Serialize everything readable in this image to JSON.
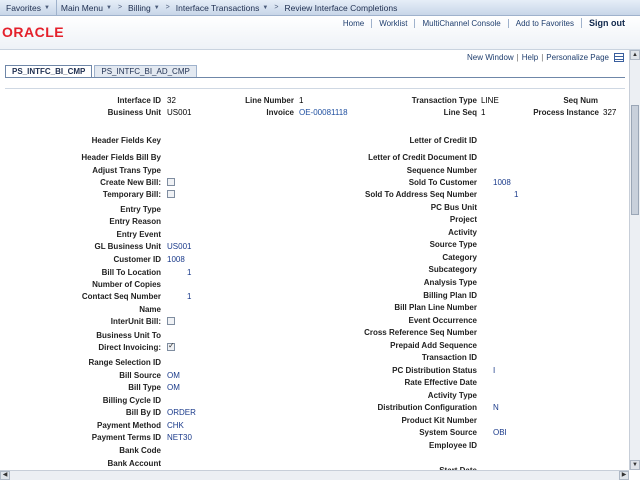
{
  "topnav": {
    "favorites": "Favorites",
    "main_menu": "Main Menu",
    "crumbs": [
      "Billing",
      "Interface Transactions",
      "Review Interface Completions"
    ]
  },
  "header": {
    "logo": "ORACLE",
    "links": [
      "Home",
      "Worklist",
      "MultiChannel Console",
      "Add to Favorites",
      "Sign out"
    ]
  },
  "pagelinks": [
    "New Window",
    "Help",
    "Personalize Page"
  ],
  "tabs": [
    "PS_INTFC_BI_CMP",
    "PS_INTFC_BI_AD_CMP"
  ],
  "summary": {
    "interface_id_label": "Interface ID",
    "interface_id": "32",
    "line_number_label": "Line Number",
    "line_number": "1",
    "transaction_type_label": "Transaction Type",
    "transaction_type": "LINE",
    "seq_num_label": "Seq Num",
    "business_unit_label": "Business Unit",
    "business_unit": "US001",
    "invoice_label": "Invoice",
    "invoice": "OE-00081118",
    "line_seq_label": "Line Seq",
    "line_seq": "1",
    "process_instance_label": "Process Instance",
    "process_instance": "327"
  },
  "left_fields": [
    {
      "label": "Header Fields Key",
      "value": ""
    },
    {
      "label": "Header Fields Bill By",
      "value": ""
    },
    {
      "label": "Adjust Trans Type",
      "value": ""
    },
    {
      "label": "Create New Bill:",
      "value": "",
      "checkbox": false
    },
    {
      "label": "Temporary Bill:",
      "value": "",
      "checkbox": false
    },
    {
      "label": "Entry Type",
      "value": ""
    },
    {
      "label": "Entry Reason",
      "value": ""
    },
    {
      "label": "Entry Event",
      "value": ""
    },
    {
      "label": "GL Business Unit",
      "value": "US001"
    },
    {
      "label": "Customer ID",
      "value": "1008"
    },
    {
      "label": "Bill To Location",
      "value": "1"
    },
    {
      "label": "Number of Copies",
      "value": ""
    },
    {
      "label": "Contact Seq Number",
      "value": "1"
    },
    {
      "label": "Name",
      "value": ""
    },
    {
      "label": "InterUnit Bill:",
      "value": "",
      "checkbox": false
    },
    {
      "label": "Business Unit To",
      "value": ""
    },
    {
      "label": "Direct Invoicing:",
      "value": "",
      "checkbox": true
    },
    {
      "label": "Range Selection ID",
      "value": ""
    },
    {
      "label": "Bill Source",
      "value": "OM"
    },
    {
      "label": "Bill Type",
      "value": "OM"
    },
    {
      "label": "Billing Cycle ID",
      "value": ""
    },
    {
      "label": "Bill By ID",
      "value": "ORDER"
    },
    {
      "label": "Payment Method",
      "value": "CHK"
    },
    {
      "label": "Payment Terms ID",
      "value": "NET30"
    },
    {
      "label": "Bank Code",
      "value": ""
    },
    {
      "label": "Bank Account",
      "value": ""
    }
  ],
  "right_fields": [
    {
      "label": "Letter of Credit ID",
      "value": ""
    },
    {
      "label": "Letter of Credit Document ID",
      "value": ""
    },
    {
      "label": "Sequence Number",
      "value": ""
    },
    {
      "label": "Sold To Customer",
      "value": "1008"
    },
    {
      "label": "Sold To Address Seq Number",
      "value": "1"
    },
    {
      "label": "PC Bus Unit",
      "value": ""
    },
    {
      "label": "Project",
      "value": ""
    },
    {
      "label": "Activity",
      "value": ""
    },
    {
      "label": "Source Type",
      "value": ""
    },
    {
      "label": "Category",
      "value": ""
    },
    {
      "label": "Subcategory",
      "value": ""
    },
    {
      "label": "Analysis Type",
      "value": ""
    },
    {
      "label": "Billing Plan ID",
      "value": ""
    },
    {
      "label": "Bill Plan Line Number",
      "value": ""
    },
    {
      "label": "Event Occurrence",
      "value": ""
    },
    {
      "label": "Cross Reference Seq Number",
      "value": ""
    },
    {
      "label": "Prepaid Add Sequence",
      "value": ""
    },
    {
      "label": "Transaction ID",
      "value": ""
    },
    {
      "label": "PC Distribution Status",
      "value": "I"
    },
    {
      "label": "Rate Effective Date",
      "value": ""
    },
    {
      "label": "Activity Type",
      "value": ""
    },
    {
      "label": "Distribution Configuration",
      "value": "N"
    },
    {
      "label": "Product Kit Number",
      "value": ""
    },
    {
      "label": "System Source",
      "value": "OBI"
    },
    {
      "label": "Employee ID",
      "value": ""
    },
    {
      "label": "Start Date",
      "value": ""
    }
  ]
}
